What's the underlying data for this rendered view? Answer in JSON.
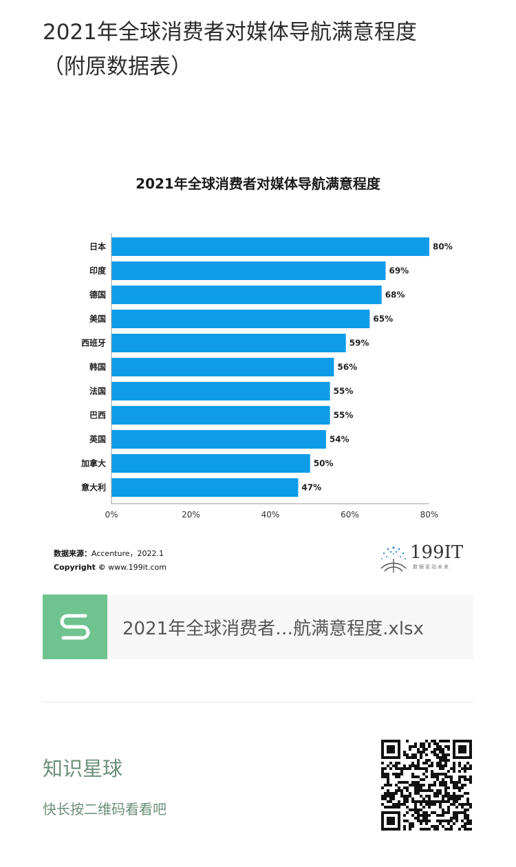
{
  "article": {
    "title_line1": "2021年全球消费者对媒体导航满意程度",
    "title_line2": "（附原数据表）"
  },
  "chart_data": {
    "type": "bar",
    "orientation": "horizontal",
    "title": "2021年全球消费者对媒体导航满意程度",
    "categories": [
      "日本",
      "印度",
      "德国",
      "美国",
      "西班牙",
      "韩国",
      "法国",
      "巴西",
      "英国",
      "加拿大",
      "意大利"
    ],
    "values": [
      80,
      69,
      68,
      65,
      59,
      56,
      55,
      55,
      54,
      50,
      47
    ],
    "value_labels": [
      "80%",
      "69%",
      "68%",
      "65%",
      "59%",
      "56%",
      "55%",
      "55%",
      "54%",
      "50%",
      "47%"
    ],
    "x_ticks": [
      "0%",
      "20%",
      "40%",
      "60%",
      "80%"
    ],
    "xlim": [
      0,
      80
    ],
    "grid": false,
    "bar_color": "#0e9ce8",
    "xlabel": "",
    "ylabel": ""
  },
  "source": {
    "label": "数据来源：",
    "value": "Accenture，2022.1",
    "copyright_label": "Copyright ©",
    "copyright_site": "www.199it.com"
  },
  "brand": {
    "name": "199IT",
    "slogan": "数据驱动未来",
    "icon": "dandelion-logo-icon"
  },
  "attachment": {
    "icon": "spreadsheet-s-icon",
    "file_name": "2021年全球消费者…航满意程度.xlsx",
    "icon_color": "#6fc38f"
  },
  "footer": {
    "title": "知识星球",
    "hint": "快长按二维码看看吧",
    "qr_icon": "qr-code-icon",
    "accent_color": "#6b8f78"
  }
}
